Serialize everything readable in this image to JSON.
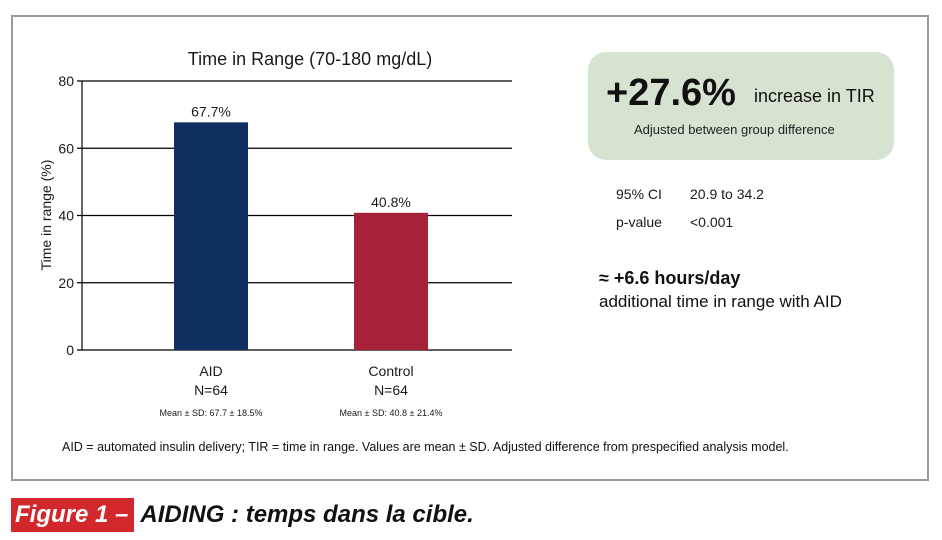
{
  "chart_data": {
    "type": "bar",
    "title": "Time in Range (70-180 mg/dL)",
    "ylabel": "Time in range (%)",
    "xlabel": "",
    "ylim": [
      0,
      80
    ],
    "yticks": [
      0,
      20,
      40,
      60,
      80
    ],
    "grid": true,
    "categories": [
      "AID",
      "Control"
    ],
    "category_n": [
      "N=64",
      "N=64"
    ],
    "category_notes": [
      "Mean ± SD: 67.7 ± 18.5%",
      "Mean ± SD: 40.8 ± 21.4%"
    ],
    "values": [
      67.7,
      40.8
    ],
    "value_labels": [
      "67.7%",
      "40.8%"
    ],
    "colors": [
      "#0e2f5f",
      "#a52238"
    ]
  },
  "summary": {
    "difference": "+27.6%",
    "difference_label": "increase in TIR",
    "difference_note": "Adjusted between group difference",
    "box_color": "#d6e3d1"
  },
  "stats": {
    "ci_label": "95% CI",
    "ci_value": "20.9 to 34.2",
    "p_label": "p-value",
    "p_value": "<0.001"
  },
  "hours": {
    "headline": "≈ +6.6 hours/day",
    "text": "additional time in range with AID"
  },
  "footnote": "AID = automated insulin delivery; TIR = time in range. Values are mean ± SD. Adjusted difference from prespecified analysis model.",
  "caption": {
    "prefix": "Figure 1 –",
    "text": "AIDING : temps dans la cible.",
    "accent_color": "#d3272e"
  }
}
